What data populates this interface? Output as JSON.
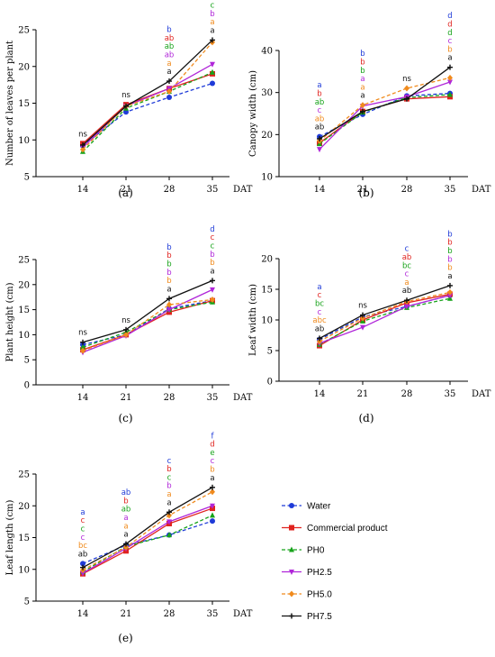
{
  "colors": {
    "Water": "#1f3bd8",
    "Commercial product": "#e0231f",
    "PH0": "#17a31a",
    "PH2.5": "#b026d9",
    "PH5.0": "#f08a1c",
    "PH7.5": "#111111"
  },
  "legend": {
    "items": [
      {
        "name": "Water",
        "style": "dashed",
        "marker": "circle"
      },
      {
        "name": "Commercial product",
        "style": "solid",
        "marker": "square"
      },
      {
        "name": "PH0",
        "style": "dashed",
        "marker": "triangle"
      },
      {
        "name": "PH2.5",
        "style": "solid",
        "marker": "tri-down"
      },
      {
        "name": "PH5.0",
        "style": "dashed",
        "marker": "diamond"
      },
      {
        "name": "PH7.5",
        "style": "solid",
        "marker": "plus"
      }
    ]
  },
  "chart_data": [
    {
      "type": "line",
      "panel_label": "(a)",
      "ylabel": "Number of leaves per plant",
      "xlabel": "DAT",
      "categories": [
        "14",
        "21",
        "28",
        "35"
      ],
      "ylim": [
        5,
        25
      ],
      "yticks": [
        5,
        10,
        15,
        20,
        25
      ],
      "series": [
        {
          "name": "Water",
          "values": [
            9.2,
            13.8,
            15.8,
            17.7
          ]
        },
        {
          "name": "Commercial product",
          "values": [
            9.5,
            14.8,
            17.0,
            19.0
          ]
        },
        {
          "name": "PH0",
          "values": [
            8.4,
            14.3,
            16.6,
            19.2
          ]
        },
        {
          "name": "PH2.5",
          "values": [
            9.0,
            14.6,
            17.0,
            20.3
          ]
        },
        {
          "name": "PH5.0",
          "values": [
            8.7,
            14.6,
            16.6,
            23.3
          ]
        },
        {
          "name": "PH7.5",
          "values": [
            9.3,
            14.6,
            18.0,
            23.6
          ]
        }
      ],
      "letters": [
        [
          {
            "t": "ns",
            "c": "#111111"
          }
        ],
        [
          {
            "t": "ns",
            "c": "#111111"
          }
        ],
        [
          {
            "t": "b",
            "c": "#1f3bd8"
          },
          {
            "t": "ab",
            "c": "#e0231f"
          },
          {
            "t": "ab",
            "c": "#17a31a"
          },
          {
            "t": "ab",
            "c": "#b026d9"
          },
          {
            "t": "a",
            "c": "#f08a1c"
          },
          {
            "t": "a",
            "c": "#111111"
          }
        ],
        [
          {
            "t": "d",
            "c": "#1f3bd8"
          },
          {
            "t": "c",
            "c": "#e0231f"
          },
          {
            "t": "c",
            "c": "#17a31a"
          },
          {
            "t": "b",
            "c": "#b026d9"
          },
          {
            "t": "a",
            "c": "#f08a1c"
          },
          {
            "t": "a",
            "c": "#111111"
          }
        ]
      ]
    },
    {
      "type": "line",
      "panel_label": "(b)",
      "ylabel": "Canopy width (cm)",
      "xlabel": "DAT",
      "categories": [
        "14",
        "21",
        "28",
        "35"
      ],
      "ylim": [
        10,
        40
      ],
      "yticks": [
        10,
        20,
        30,
        40
      ],
      "series": [
        {
          "name": "Water",
          "values": [
            19.5,
            24.8,
            29.2,
            29.8
          ]
        },
        {
          "name": "Commercial product",
          "values": [
            18.0,
            25.5,
            28.5,
            29.0
          ]
        },
        {
          "name": "PH0",
          "values": [
            17.8,
            25.3,
            28.8,
            29.5
          ]
        },
        {
          "name": "PH2.5",
          "values": [
            16.5,
            26.8,
            29.0,
            32.5
          ]
        },
        {
          "name": "PH5.0",
          "values": [
            18.5,
            27.0,
            31.0,
            33.5
          ]
        },
        {
          "name": "PH7.5",
          "values": [
            19.0,
            25.5,
            28.5,
            36.0
          ]
        }
      ],
      "letters": [
        [
          {
            "t": "a",
            "c": "#1f3bd8"
          },
          {
            "t": "b",
            "c": "#e0231f"
          },
          {
            "t": "ab",
            "c": "#17a31a"
          },
          {
            "t": "c",
            "c": "#b026d9"
          },
          {
            "t": "ab",
            "c": "#f08a1c"
          },
          {
            "t": "ab",
            "c": "#111111"
          }
        ],
        [
          {
            "t": "b",
            "c": "#1f3bd8"
          },
          {
            "t": "b",
            "c": "#e0231f"
          },
          {
            "t": "b",
            "c": "#17a31a"
          },
          {
            "t": "a",
            "c": "#b026d9"
          },
          {
            "t": "a",
            "c": "#f08a1c"
          },
          {
            "t": "a",
            "c": "#111111"
          }
        ],
        [
          {
            "t": "ns",
            "c": "#111111"
          }
        ],
        [
          {
            "t": "d",
            "c": "#1f3bd8"
          },
          {
            "t": "d",
            "c": "#e0231f"
          },
          {
            "t": "d",
            "c": "#17a31a"
          },
          {
            "t": "c",
            "c": "#b026d9"
          },
          {
            "t": "b",
            "c": "#f08a1c"
          },
          {
            "t": "a",
            "c": "#111111"
          }
        ]
      ]
    },
    {
      "type": "line",
      "panel_label": "(c)",
      "ylabel": "Plant height (cm)",
      "xlabel": "DAT",
      "categories": [
        "14",
        "21",
        "28",
        "35"
      ],
      "ylim": [
        0,
        25
      ],
      "yticks": [
        0,
        5,
        10,
        15,
        20,
        25
      ],
      "series": [
        {
          "name": "Water",
          "values": [
            8.0,
            10.0,
            15.2,
            16.8
          ]
        },
        {
          "name": "Commercial product",
          "values": [
            7.0,
            10.0,
            14.5,
            16.8
          ]
        },
        {
          "name": "PH0",
          "values": [
            7.5,
            10.5,
            15.0,
            16.5
          ]
        },
        {
          "name": "PH2.5",
          "values": [
            6.5,
            9.8,
            15.0,
            19.0
          ]
        },
        {
          "name": "PH5.0",
          "values": [
            6.8,
            10.0,
            16.0,
            17.0
          ]
        },
        {
          "name": "PH7.5",
          "values": [
            8.5,
            11.0,
            17.2,
            20.8
          ]
        }
      ],
      "letters": [
        [
          {
            "t": "ns",
            "c": "#111111"
          }
        ],
        [
          {
            "t": "ns",
            "c": "#111111"
          }
        ],
        [
          {
            "t": "b",
            "c": "#1f3bd8"
          },
          {
            "t": "b",
            "c": "#e0231f"
          },
          {
            "t": "b",
            "c": "#17a31a"
          },
          {
            "t": "b",
            "c": "#b026d9"
          },
          {
            "t": "b",
            "c": "#f08a1c"
          },
          {
            "t": "a",
            "c": "#111111"
          }
        ],
        [
          {
            "t": "d",
            "c": "#1f3bd8"
          },
          {
            "t": "c",
            "c": "#e0231f"
          },
          {
            "t": "c",
            "c": "#17a31a"
          },
          {
            "t": "b",
            "c": "#b026d9"
          },
          {
            "t": "b",
            "c": "#f08a1c"
          },
          {
            "t": "a",
            "c": "#111111"
          }
        ]
      ]
    },
    {
      "type": "line",
      "panel_label": "(d)",
      "ylabel": "Leaf width (cm)",
      "xlabel": "DAT",
      "categories": [
        "14",
        "21",
        "28",
        "35"
      ],
      "ylim": [
        0,
        20
      ],
      "yticks": [
        0,
        5,
        10,
        15,
        20
      ],
      "series": [
        {
          "name": "Water",
          "values": [
            6.8,
            10.5,
            12.2,
            14.0
          ]
        },
        {
          "name": "Commercial product",
          "values": [
            5.8,
            10.0,
            12.8,
            14.2
          ]
        },
        {
          "name": "PH0",
          "values": [
            6.0,
            9.8,
            12.0,
            13.5
          ]
        },
        {
          "name": "PH2.5",
          "values": [
            6.2,
            8.8,
            12.2,
            14.0
          ]
        },
        {
          "name": "PH5.0",
          "values": [
            6.5,
            10.3,
            13.0,
            14.5
          ]
        },
        {
          "name": "PH7.5",
          "values": [
            7.0,
            10.8,
            13.2,
            15.6
          ]
        }
      ],
      "letters": [
        [
          {
            "t": "a",
            "c": "#1f3bd8"
          },
          {
            "t": "c",
            "c": "#e0231f"
          },
          {
            "t": "bc",
            "c": "#17a31a"
          },
          {
            "t": "c",
            "c": "#b026d9"
          },
          {
            "t": "abc",
            "c": "#f08a1c"
          },
          {
            "t": "ab",
            "c": "#111111"
          }
        ],
        [
          {
            "t": "ns",
            "c": "#111111"
          }
        ],
        [
          {
            "t": "c",
            "c": "#1f3bd8"
          },
          {
            "t": "ab",
            "c": "#e0231f"
          },
          {
            "t": "bc",
            "c": "#17a31a"
          },
          {
            "t": "c",
            "c": "#b026d9"
          },
          {
            "t": "a",
            "c": "#f08a1c"
          },
          {
            "t": "ab",
            "c": "#111111"
          }
        ],
        [
          {
            "t": "b",
            "c": "#1f3bd8"
          },
          {
            "t": "b",
            "c": "#e0231f"
          },
          {
            "t": "b",
            "c": "#17a31a"
          },
          {
            "t": "b",
            "c": "#b026d9"
          },
          {
            "t": "b",
            "c": "#f08a1c"
          },
          {
            "t": "a",
            "c": "#111111"
          }
        ]
      ]
    },
    {
      "type": "line",
      "panel_label": "(e)",
      "ylabel": "Leaf length (cm)",
      "xlabel": "DAT",
      "categories": [
        "14",
        "21",
        "28",
        "35"
      ],
      "ylim": [
        5,
        25
      ],
      "yticks": [
        5,
        10,
        15,
        20,
        25
      ],
      "series": [
        {
          "name": "Water",
          "values": [
            10.9,
            13.8,
            15.4,
            17.6
          ]
        },
        {
          "name": "Commercial product",
          "values": [
            9.3,
            12.9,
            17.2,
            19.6
          ]
        },
        {
          "name": "PH0",
          "values": [
            9.6,
            13.6,
            15.4,
            18.5
          ]
        },
        {
          "name": "PH2.5",
          "values": [
            9.4,
            13.3,
            17.5,
            20.0
          ]
        },
        {
          "name": "PH5.0",
          "values": [
            9.9,
            13.5,
            18.5,
            22.2
          ]
        },
        {
          "name": "PH7.5",
          "values": [
            10.3,
            14.0,
            19.0,
            22.9
          ]
        }
      ],
      "letters": [
        [
          {
            "t": "a",
            "c": "#1f3bd8"
          },
          {
            "t": "c",
            "c": "#e0231f"
          },
          {
            "t": "c",
            "c": "#17a31a"
          },
          {
            "t": "c",
            "c": "#b026d9"
          },
          {
            "t": "bc",
            "c": "#f08a1c"
          },
          {
            "t": "ab",
            "c": "#111111"
          }
        ],
        [
          {
            "t": "ab",
            "c": "#1f3bd8"
          },
          {
            "t": "b",
            "c": "#e0231f"
          },
          {
            "t": "ab",
            "c": "#17a31a"
          },
          {
            "t": "a",
            "c": "#b026d9"
          },
          {
            "t": "a",
            "c": "#f08a1c"
          },
          {
            "t": "a",
            "c": "#111111"
          }
        ],
        [
          {
            "t": "c",
            "c": "#1f3bd8"
          },
          {
            "t": "b",
            "c": "#e0231f"
          },
          {
            "t": "c",
            "c": "#17a31a"
          },
          {
            "t": "b",
            "c": "#b026d9"
          },
          {
            "t": "a",
            "c": "#f08a1c"
          },
          {
            "t": "a",
            "c": "#111111"
          }
        ],
        [
          {
            "t": "f",
            "c": "#1f3bd8"
          },
          {
            "t": "d",
            "c": "#e0231f"
          },
          {
            "t": "e",
            "c": "#17a31a"
          },
          {
            "t": "c",
            "c": "#b026d9"
          },
          {
            "t": "b",
            "c": "#f08a1c"
          },
          {
            "t": "a",
            "c": "#111111"
          }
        ]
      ]
    }
  ]
}
